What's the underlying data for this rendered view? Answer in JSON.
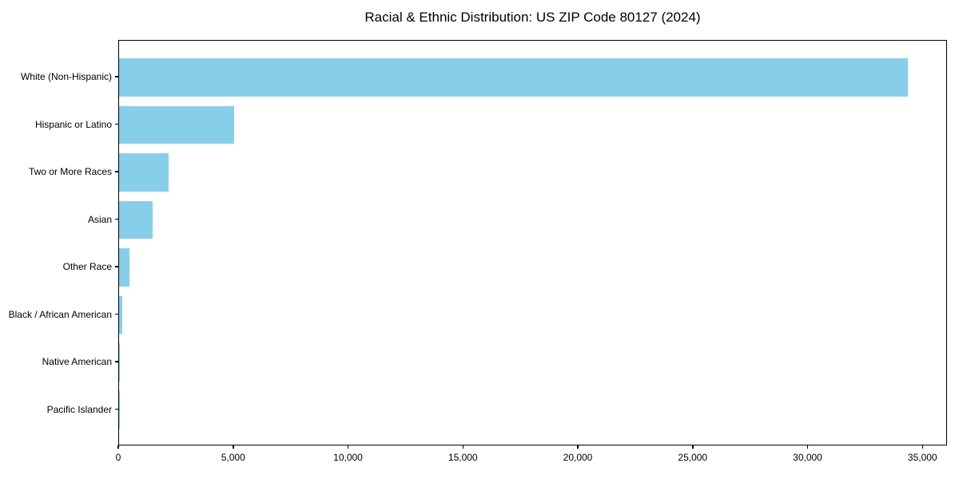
{
  "chart_data": {
    "type": "bar",
    "orientation": "horizontal",
    "title": "Racial & Ethnic Distribution: US ZIP Code 80127 (2024)",
    "categories": [
      "White (Non-Hispanic)",
      "Hispanic or Latino",
      "Two or More Races",
      "Asian",
      "Other Race",
      "Black / African American",
      "Native American",
      "Pacific Islander"
    ],
    "values": [
      34330,
      5020,
      2160,
      1460,
      440,
      150,
      40,
      10
    ],
    "bar_color": "#87CEEB",
    "axis_color": "#000000",
    "text_color": "#000000",
    "background_color": "#FFFFFF",
    "xlabel": "",
    "ylabel": "",
    "xlim": [
      0,
      36000
    ],
    "xticks": [
      0,
      5000,
      10000,
      15000,
      20000,
      25000,
      30000,
      35000
    ],
    "xtick_labels": [
      "0",
      "5,000",
      "10,000",
      "15,000",
      "20,000",
      "25,000",
      "30,000",
      "35,000"
    ],
    "grid": false,
    "legend": "none"
  }
}
